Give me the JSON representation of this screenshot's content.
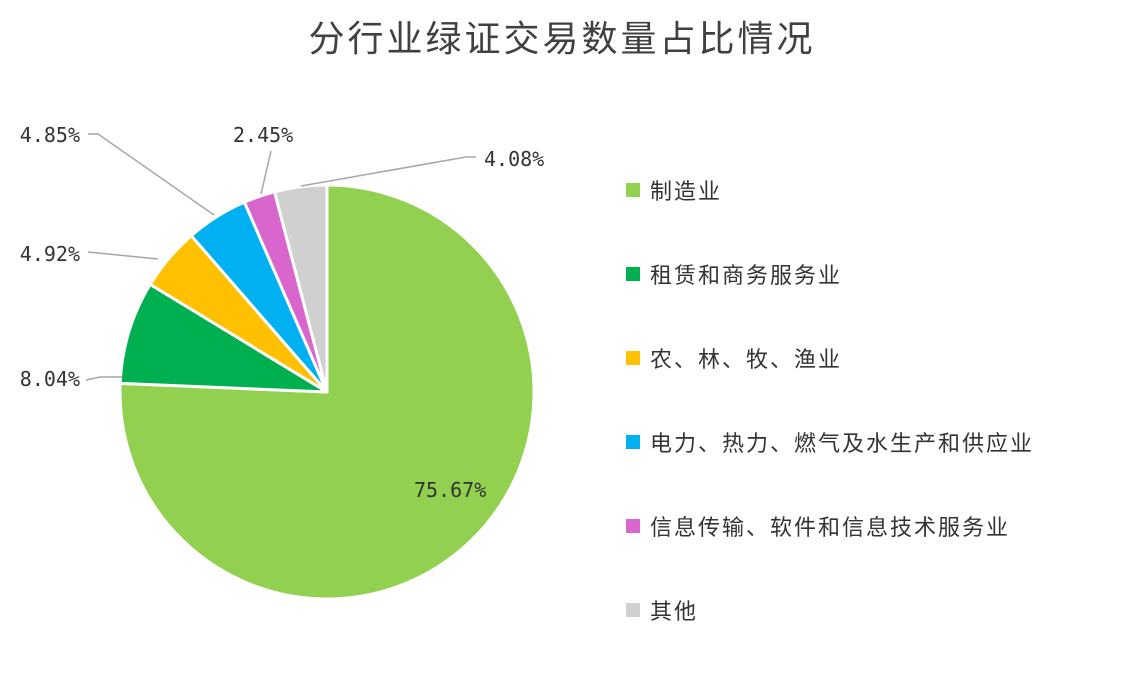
{
  "chart_data": {
    "type": "pie",
    "title": "分行业绿证交易数量占比情况",
    "categories": [
      "制造业",
      "租赁和商务服务业",
      "农、林、牧、渔业",
      "电力、热力、燃气及水生产和供应业",
      "信息传输、软件和信息技术服务业",
      "其他"
    ],
    "values": [
      75.67,
      8.04,
      4.92,
      4.85,
      2.45,
      4.08
    ],
    "value_labels": [
      "75.67%",
      "8.04%",
      "4.92%",
      "4.85%",
      "2.45%",
      "4.08%"
    ],
    "colors": [
      "#92D050",
      "#00B050",
      "#FFC000",
      "#00B0F0",
      "#D966CC",
      "#D0D0D0"
    ],
    "start_angle_deg": 0,
    "direction": "clockwise",
    "legend_position": "right"
  }
}
